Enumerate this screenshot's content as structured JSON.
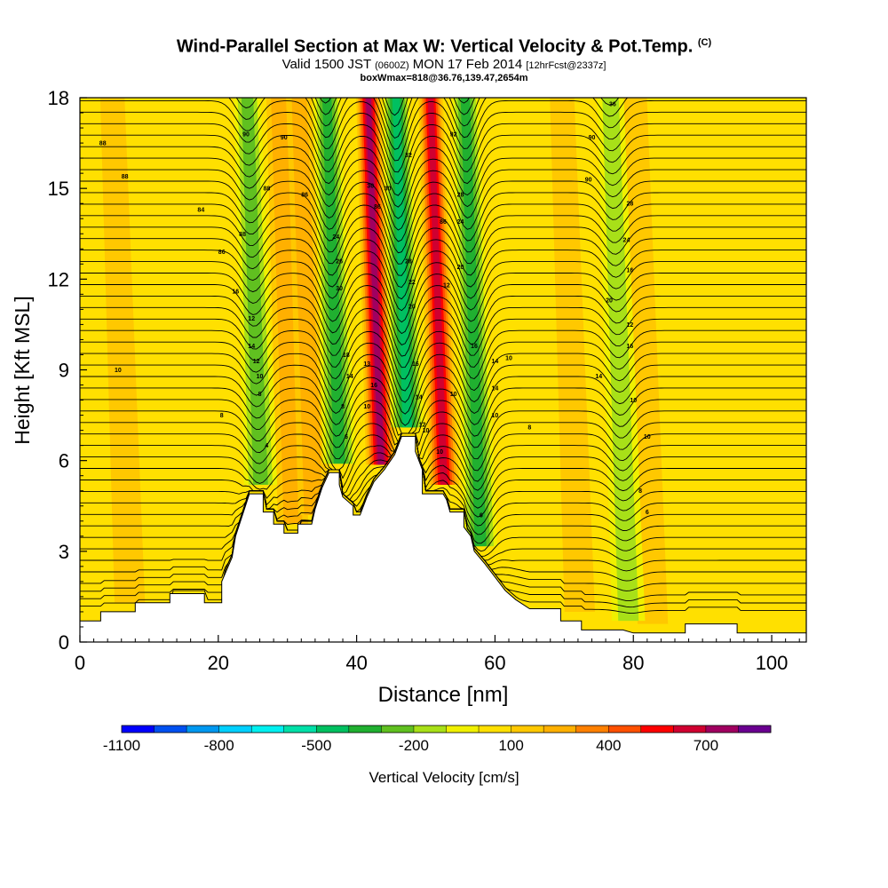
{
  "header": {
    "title": "Wind-Parallel Section at Max W: Vertical Velocity & Pot.Temp.",
    "title_mark": "(C)",
    "valid_prefix": "Valid 1500 JST",
    "valid_small_1": "(0600Z)",
    "valid_date": "MON 17 Feb 2014",
    "valid_small_2": "[12hrFcst@2337z]",
    "box_info": "boxWmax=818@36.76,139.47,2654m"
  },
  "chart_data": {
    "type": "heatmap",
    "xlabel": "Distance [nm]",
    "ylabel": "Height [Kft MSL]",
    "xlim": [
      0,
      105
    ],
    "ylim": [
      0,
      18
    ],
    "x_ticks": [
      "0",
      "20",
      "40",
      "60",
      "80",
      "100"
    ],
    "y_ticks": [
      "0",
      "3",
      "6",
      "9",
      "12",
      "15",
      "18"
    ],
    "colorbar": {
      "label": "Vertical Velocity [cm/s]",
      "tick_labels": [
        "-1100",
        "-800",
        "-500",
        "-200",
        "100",
        "400",
        "700"
      ],
      "levels": [
        -1100,
        -1000,
        -900,
        -800,
        -700,
        -600,
        -500,
        -400,
        -300,
        -200,
        -100,
        0,
        100,
        200,
        300,
        400,
        500,
        600,
        700,
        800
      ],
      "colors": [
        "#0000ff",
        "#0050f0",
        "#0098f0",
        "#00d0ff",
        "#00f0f0",
        "#00e0a8",
        "#00c060",
        "#20b030",
        "#60c020",
        "#a8e018",
        "#f0f000",
        "#ffe000",
        "#ffc800",
        "#ffb000",
        "#ff8000",
        "#ff5000",
        "#ff0000",
        "#d00030",
        "#a00060",
        "#6a0090"
      ]
    },
    "terrain": [
      [
        0,
        0.7
      ],
      [
        3,
        0.7
      ],
      [
        3,
        1
      ],
      [
        8,
        1
      ],
      [
        8,
        1.3
      ],
      [
        13,
        1.3
      ],
      [
        13,
        1.6
      ],
      [
        18,
        1.6
      ],
      [
        18,
        1.3
      ],
      [
        20.5,
        1.3
      ],
      [
        20.5,
        2
      ],
      [
        22,
        2.8
      ],
      [
        22.5,
        3.5
      ],
      [
        23.5,
        4.2
      ],
      [
        24.5,
        4.9
      ],
      [
        26.5,
        4.9
      ],
      [
        26.5,
        4.3
      ],
      [
        28,
        4.3
      ],
      [
        28,
        3.9
      ],
      [
        29.5,
        3.9
      ],
      [
        29.5,
        3.6
      ],
      [
        31.5,
        3.6
      ],
      [
        31.5,
        3.9
      ],
      [
        33.5,
        3.9
      ],
      [
        34,
        4.4
      ],
      [
        35,
        5.1
      ],
      [
        36,
        5.6
      ],
      [
        37.5,
        5.6
      ],
      [
        37.5,
        5.2
      ],
      [
        38,
        4.8
      ],
      [
        39.5,
        4.5
      ],
      [
        39.5,
        4.2
      ],
      [
        40.5,
        4.2
      ],
      [
        41.5,
        4.8
      ],
      [
        42.5,
        5.3
      ],
      [
        44,
        5.7
      ],
      [
        45.5,
        6.2
      ],
      [
        46.5,
        6.8
      ],
      [
        48.5,
        6.8
      ],
      [
        48.5,
        6.3
      ],
      [
        49.5,
        5.7
      ],
      [
        49.5,
        4.9
      ],
      [
        52.5,
        4.9
      ],
      [
        53,
        4.7
      ],
      [
        53.5,
        4.3
      ],
      [
        55.5,
        4.3
      ],
      [
        55.5,
        3.8
      ],
      [
        56.5,
        3.5
      ],
      [
        57,
        3
      ],
      [
        58.5,
        2.6
      ],
      [
        59.5,
        2.3
      ],
      [
        60.5,
        2
      ],
      [
        61.5,
        1.7
      ],
      [
        63,
        1.4
      ],
      [
        65,
        1.1
      ],
      [
        69.5,
        1.1
      ],
      [
        69.5,
        0.7
      ],
      [
        72.5,
        0.7
      ],
      [
        72.5,
        0.4
      ],
      [
        78.5,
        0.4
      ],
      [
        80,
        0.3
      ],
      [
        87.5,
        0.3
      ],
      [
        87.5,
        0.6
      ],
      [
        95,
        0.6
      ],
      [
        95,
        0.3
      ],
      [
        105,
        0.3
      ]
    ],
    "updrafts": [
      {
        "x": 43.5,
        "w": 700
      },
      {
        "x": 52.5,
        "w": 600
      },
      {
        "x": 30.5,
        "w": 200
      },
      {
        "x": 33.5,
        "w": 200
      },
      {
        "x": 6.5,
        "w": 100
      },
      {
        "x": 71.5,
        "w": 100
      },
      {
        "x": 82,
        "w": 100
      }
    ],
    "downdrafts": [
      {
        "x": 47.5,
        "w": -500
      },
      {
        "x": 57.5,
        "w": -400
      },
      {
        "x": 37.5,
        "w": -400
      },
      {
        "x": 26,
        "w": -300
      },
      {
        "x": 78.5,
        "w": -200
      }
    ],
    "contour_labels": [
      {
        "x": 3.3,
        "y": 16.5,
        "text": "88"
      },
      {
        "x": 6.5,
        "y": 15.4,
        "text": "88"
      },
      {
        "x": 17.5,
        "y": 14.3,
        "text": "84"
      },
      {
        "x": 20.5,
        "y": 12.9,
        "text": "86"
      },
      {
        "x": 22.5,
        "y": 11.6,
        "text": "16"
      },
      {
        "x": 24.8,
        "y": 10.7,
        "text": "12"
      },
      {
        "x": 24.8,
        "y": 9.8,
        "text": "14"
      },
      {
        "x": 25.5,
        "y": 9.3,
        "text": "12"
      },
      {
        "x": 26,
        "y": 8.8,
        "text": "10"
      },
      {
        "x": 26,
        "y": 8.2,
        "text": "8"
      },
      {
        "x": 5.5,
        "y": 9,
        "text": "10"
      },
      {
        "x": 20.5,
        "y": 7.5,
        "text": "8"
      },
      {
        "x": 27,
        "y": 6.5,
        "text": "4"
      },
      {
        "x": 24,
        "y": 16.8,
        "text": "90"
      },
      {
        "x": 29.5,
        "y": 16.7,
        "text": "90"
      },
      {
        "x": 27,
        "y": 15,
        "text": "88"
      },
      {
        "x": 32.5,
        "y": 14.8,
        "text": "86"
      },
      {
        "x": 23.5,
        "y": 13.5,
        "text": "88"
      },
      {
        "x": 37,
        "y": 13.4,
        "text": "24"
      },
      {
        "x": 37.5,
        "y": 12.6,
        "text": "26"
      },
      {
        "x": 37.5,
        "y": 11.7,
        "text": "30"
      },
      {
        "x": 38.5,
        "y": 9.5,
        "text": "18"
      },
      {
        "x": 39,
        "y": 8.8,
        "text": "14"
      },
      {
        "x": 38,
        "y": 7.8,
        "text": "8"
      },
      {
        "x": 38.5,
        "y": 6.8,
        "text": "6"
      },
      {
        "x": 42,
        "y": 15.1,
        "text": "30"
      },
      {
        "x": 43,
        "y": 14.4,
        "text": "86"
      },
      {
        "x": 44.5,
        "y": 15,
        "text": "30"
      },
      {
        "x": 47.5,
        "y": 16.1,
        "text": "32"
      },
      {
        "x": 47.5,
        "y": 12.6,
        "text": "28"
      },
      {
        "x": 48,
        "y": 11.9,
        "text": "22"
      },
      {
        "x": 48,
        "y": 11.1,
        "text": "20"
      },
      {
        "x": 48.5,
        "y": 9.2,
        "text": "16"
      },
      {
        "x": 49,
        "y": 8.1,
        "text": "14"
      },
      {
        "x": 49.5,
        "y": 7.2,
        "text": "12"
      },
      {
        "x": 50,
        "y": 7,
        "text": "10"
      },
      {
        "x": 41.5,
        "y": 9.2,
        "text": "13"
      },
      {
        "x": 42.5,
        "y": 8.5,
        "text": "16"
      },
      {
        "x": 41.5,
        "y": 7.8,
        "text": "10"
      },
      {
        "x": 54,
        "y": 16.8,
        "text": "92"
      },
      {
        "x": 55,
        "y": 14.8,
        "text": "28"
      },
      {
        "x": 52.5,
        "y": 13.9,
        "text": "86"
      },
      {
        "x": 55,
        "y": 13.9,
        "text": "24"
      },
      {
        "x": 55,
        "y": 12.4,
        "text": "20"
      },
      {
        "x": 53,
        "y": 11.8,
        "text": "12"
      },
      {
        "x": 54,
        "y": 8.2,
        "text": "10"
      },
      {
        "x": 57,
        "y": 9.8,
        "text": "16"
      },
      {
        "x": 60,
        "y": 9.3,
        "text": "14"
      },
      {
        "x": 60,
        "y": 8.4,
        "text": "14"
      },
      {
        "x": 62,
        "y": 9.4,
        "text": "10"
      },
      {
        "x": 60,
        "y": 7.5,
        "text": "10"
      },
      {
        "x": 65,
        "y": 7.1,
        "text": "8"
      },
      {
        "x": 52,
        "y": 6.3,
        "text": "10"
      },
      {
        "x": 58,
        "y": 4.2,
        "text": "6"
      },
      {
        "x": 77,
        "y": 17.8,
        "text": "36"
      },
      {
        "x": 74,
        "y": 16.7,
        "text": "90"
      },
      {
        "x": 73.5,
        "y": 15.3,
        "text": "90"
      },
      {
        "x": 79.5,
        "y": 14.5,
        "text": "28"
      },
      {
        "x": 79,
        "y": 13.3,
        "text": "24"
      },
      {
        "x": 79.5,
        "y": 12.3,
        "text": "16"
      },
      {
        "x": 76.5,
        "y": 11.3,
        "text": "20"
      },
      {
        "x": 79.5,
        "y": 10.5,
        "text": "12"
      },
      {
        "x": 79.5,
        "y": 9.8,
        "text": "16"
      },
      {
        "x": 75,
        "y": 8.8,
        "text": "14"
      },
      {
        "x": 80,
        "y": 8,
        "text": "10"
      },
      {
        "x": 82,
        "y": 6.8,
        "text": "10"
      },
      {
        "x": 81,
        "y": 5,
        "text": "8"
      },
      {
        "x": 82,
        "y": 4.3,
        "text": "6"
      }
    ]
  }
}
